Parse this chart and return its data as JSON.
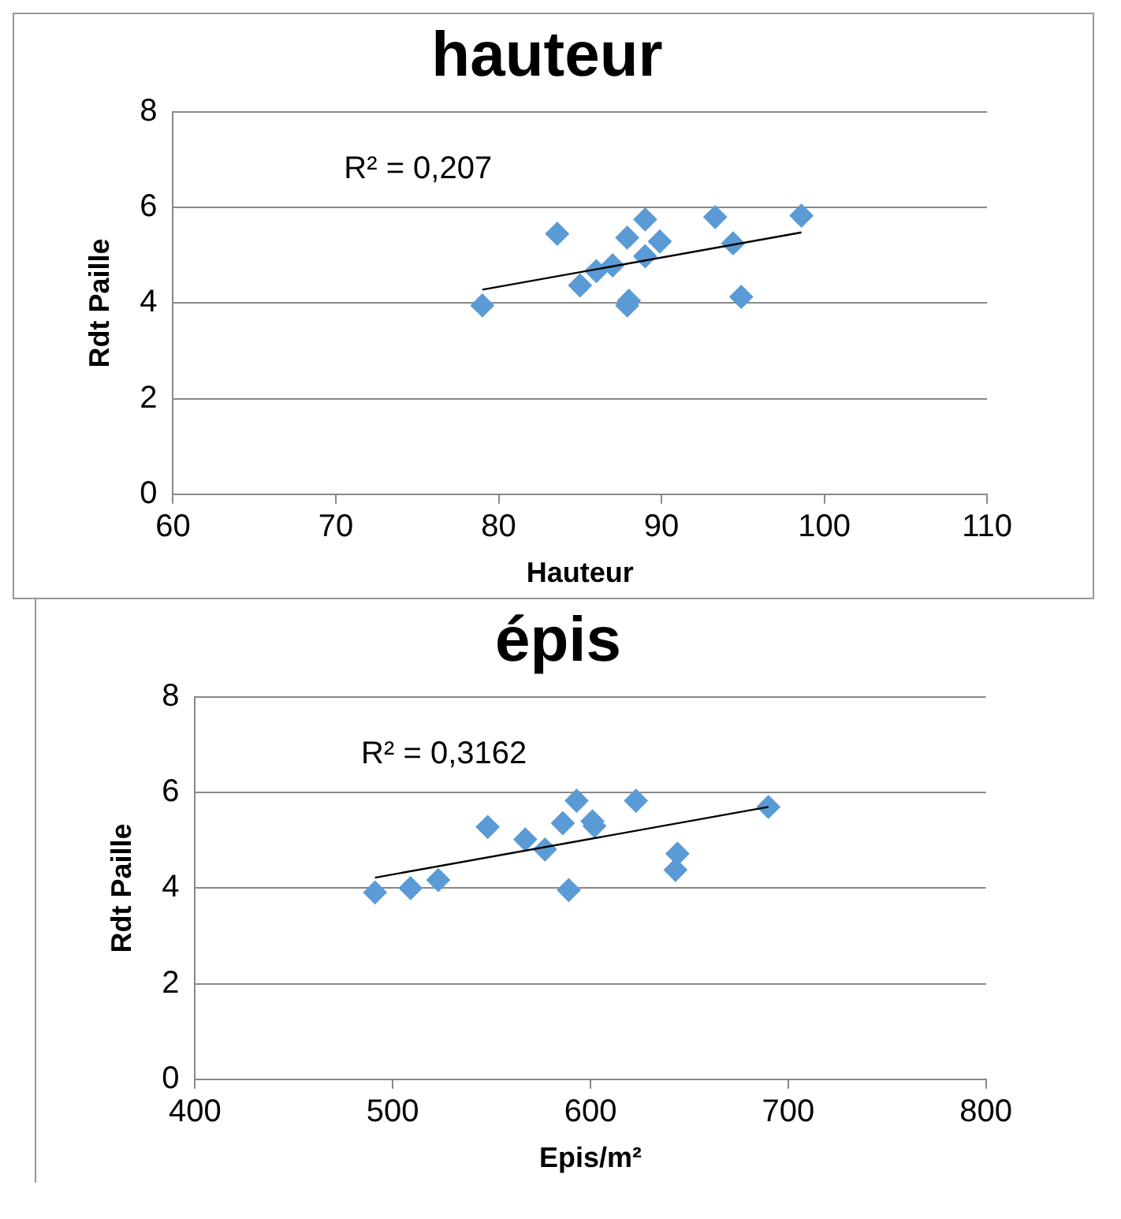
{
  "chart_data": [
    {
      "type": "scatter",
      "title": "hauteur",
      "xlabel": "Hauteur",
      "ylabel": "Rdt Paille",
      "xlim": [
        60,
        110
      ],
      "xticks": [
        60,
        70,
        80,
        90,
        100,
        110
      ],
      "ylim": [
        0,
        8
      ],
      "yticks": [
        0,
        2,
        4,
        6,
        8
      ],
      "grid": "y",
      "legend": false,
      "marker": "diamond",
      "annotations": [
        "R² = 0,207"
      ],
      "series": [
        {
          "color": "#5b9bd5",
          "x": [
            79.0,
            83.6,
            85.0,
            86.0,
            87.0,
            87.9,
            87.9,
            88.0,
            89.0,
            89.0,
            89.9,
            93.3,
            94.4,
            94.9,
            98.6
          ],
          "values": [
            3.95,
            5.45,
            4.37,
            4.67,
            4.79,
            5.37,
            3.95,
            4.05,
            5.75,
            4.98,
            5.29,
            5.8,
            5.25,
            4.13,
            5.83
          ]
        },
        {
          "type": "line",
          "color": "#000000",
          "marker": "none",
          "x": [
            79.0,
            98.6
          ],
          "values": [
            4.28,
            5.48
          ]
        }
      ]
    },
    {
      "type": "scatter",
      "title": "épis",
      "xlabel": "Epis/m²",
      "ylabel": "Rdt Paille",
      "xlim": [
        400,
        800
      ],
      "xticks": [
        400,
        500,
        600,
        700,
        800
      ],
      "ylim": [
        0,
        8
      ],
      "yticks": [
        0,
        2,
        4,
        6,
        8
      ],
      "grid": "y",
      "legend": false,
      "marker": "diamond",
      "annotations": [
        "R² = 0,3162"
      ],
      "series": [
        {
          "color": "#5b9bd5",
          "x": [
            491,
            509,
            523,
            548,
            567,
            577,
            586,
            593,
            589,
            601,
            602,
            623,
            643,
            644,
            690
          ],
          "values": [
            3.91,
            4.0,
            4.17,
            5.28,
            5.02,
            4.81,
            5.36,
            5.83,
            3.96,
            5.4,
            5.3,
            5.83,
            4.38,
            4.72,
            5.7
          ]
        },
        {
          "type": "line",
          "color": "#000000",
          "marker": "none",
          "x": [
            491,
            690
          ],
          "values": [
            4.22,
            5.7
          ]
        }
      ]
    }
  ]
}
